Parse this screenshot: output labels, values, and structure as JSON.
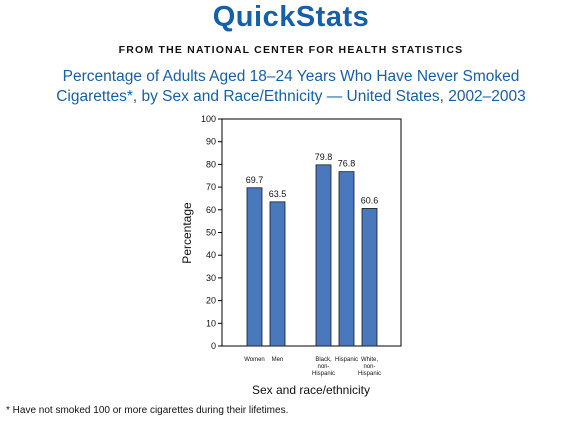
{
  "header": {
    "brand": "QuickStats",
    "source": "FROM THE NATIONAL CENTER FOR HEALTH STATISTICS",
    "title_line1": "Percentage of Adults Aged 18–24 Years Who Have Never Smoked",
    "title_line2": "Cigarettes*, by Sex and Race/Ethnicity — United States, 2002–2003",
    "brand_color": "#1560ab"
  },
  "chart_data": {
    "type": "bar",
    "categories": [
      "Women",
      "Men",
      "Black, non-Hispanic",
      "Hispanic",
      "White, non-Hispanic"
    ],
    "category_lines": [
      [
        "Women"
      ],
      [
        "Men"
      ],
      [
        "Black,",
        "non-",
        "Hispanic"
      ],
      [
        "Hispanic"
      ],
      [
        "White,",
        "non-",
        "Hispanic"
      ]
    ],
    "groups": [
      [
        "Women",
        "Men"
      ],
      [
        "Black, non-Hispanic",
        "Hispanic",
        "White, non-Hispanic"
      ]
    ],
    "values": [
      69.7,
      63.5,
      79.8,
      76.8,
      60.6
    ],
    "value_labels": [
      "69.7",
      "63.5",
      "79.8",
      "76.8",
      "60.6"
    ],
    "xlabel": "Sex and race/ethnicity",
    "ylabel": "Percentage",
    "ylim": [
      0,
      100
    ],
    "yticks": [
      0,
      10,
      20,
      30,
      40,
      50,
      60,
      70,
      80,
      90,
      100
    ],
    "grid": false,
    "legend": "none",
    "bar_color": "#4a78bd"
  },
  "footnote": "* Have not smoked 100 or more cigarettes during their lifetimes."
}
